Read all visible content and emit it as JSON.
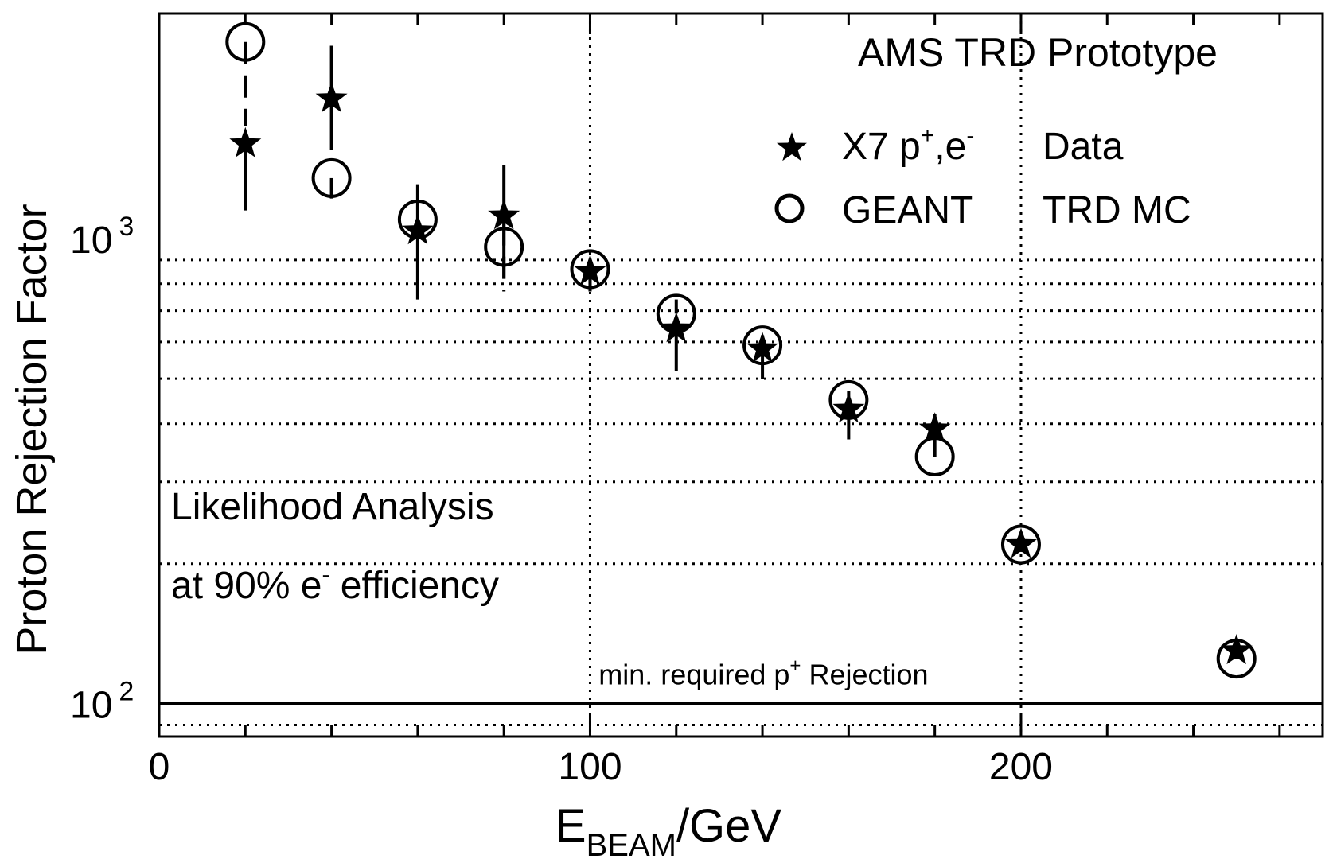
{
  "chart_data": {
    "type": "scatter",
    "title": "AMS TRD Prototype",
    "xlabel": {
      "main": "E",
      "sub": "BEAM",
      "rest": "/GeV"
    },
    "ylabel": "Proton Rejection Factor",
    "x_ticks": [
      "0",
      "100",
      "200"
    ],
    "y_ticks": [
      {
        "value": 100,
        "base": "10",
        "exp": "2"
      },
      {
        "value": 1000,
        "base": "10",
        "exp": "3"
      }
    ],
    "xlim": [
      0,
      270
    ],
    "ylim": [
      85,
      3050
    ],
    "y_scale": "log",
    "grid": true,
    "legend_position": "top-right",
    "series": [
      {
        "name": {
          "base": "X7 p",
          "sup1": "+",
          "mid": ",e",
          "sup2": "-",
          "tail": "Data"
        },
        "marker": "star",
        "x": [
          20,
          40,
          60,
          80,
          100,
          120,
          140,
          160,
          180,
          200,
          250
        ],
        "y": [
          1600,
          2000,
          1040,
          1120,
          850,
          640,
          580,
          430,
          390,
          220,
          130
        ],
        "err_low": [
          450,
          450,
          300,
          300,
          80,
          120,
          80,
          60,
          30,
          8,
          5
        ],
        "err_high": [
          0,
          600,
          270,
          320,
          30,
          0,
          40,
          10,
          30,
          8,
          5
        ]
      },
      {
        "name": {
          "base": "GEANT",
          "tail": "TRD MC"
        },
        "marker": "circle",
        "x": [
          20,
          40,
          60,
          80,
          100,
          120,
          140,
          160,
          180,
          200,
          250
        ],
        "y": [
          2650,
          1350,
          1100,
          960,
          860,
          690,
          590,
          450,
          340,
          220,
          125
        ],
        "err_low": [
          900,
          130,
          0,
          190,
          100,
          0,
          0,
          0,
          0,
          0,
          0
        ],
        "err_high": [
          0,
          0,
          0,
          120,
          0,
          50,
          30,
          20,
          20,
          0,
          0
        ]
      }
    ],
    "reference_line": {
      "y": 100,
      "label": {
        "base": "min. required p",
        "sup": "+",
        "tail": " Rejection"
      }
    },
    "annotations": {
      "line1": "Likelihood Analysis",
      "line2": {
        "base": "at 90% e",
        "sup": "-",
        "tail": " efficiency"
      }
    }
  }
}
